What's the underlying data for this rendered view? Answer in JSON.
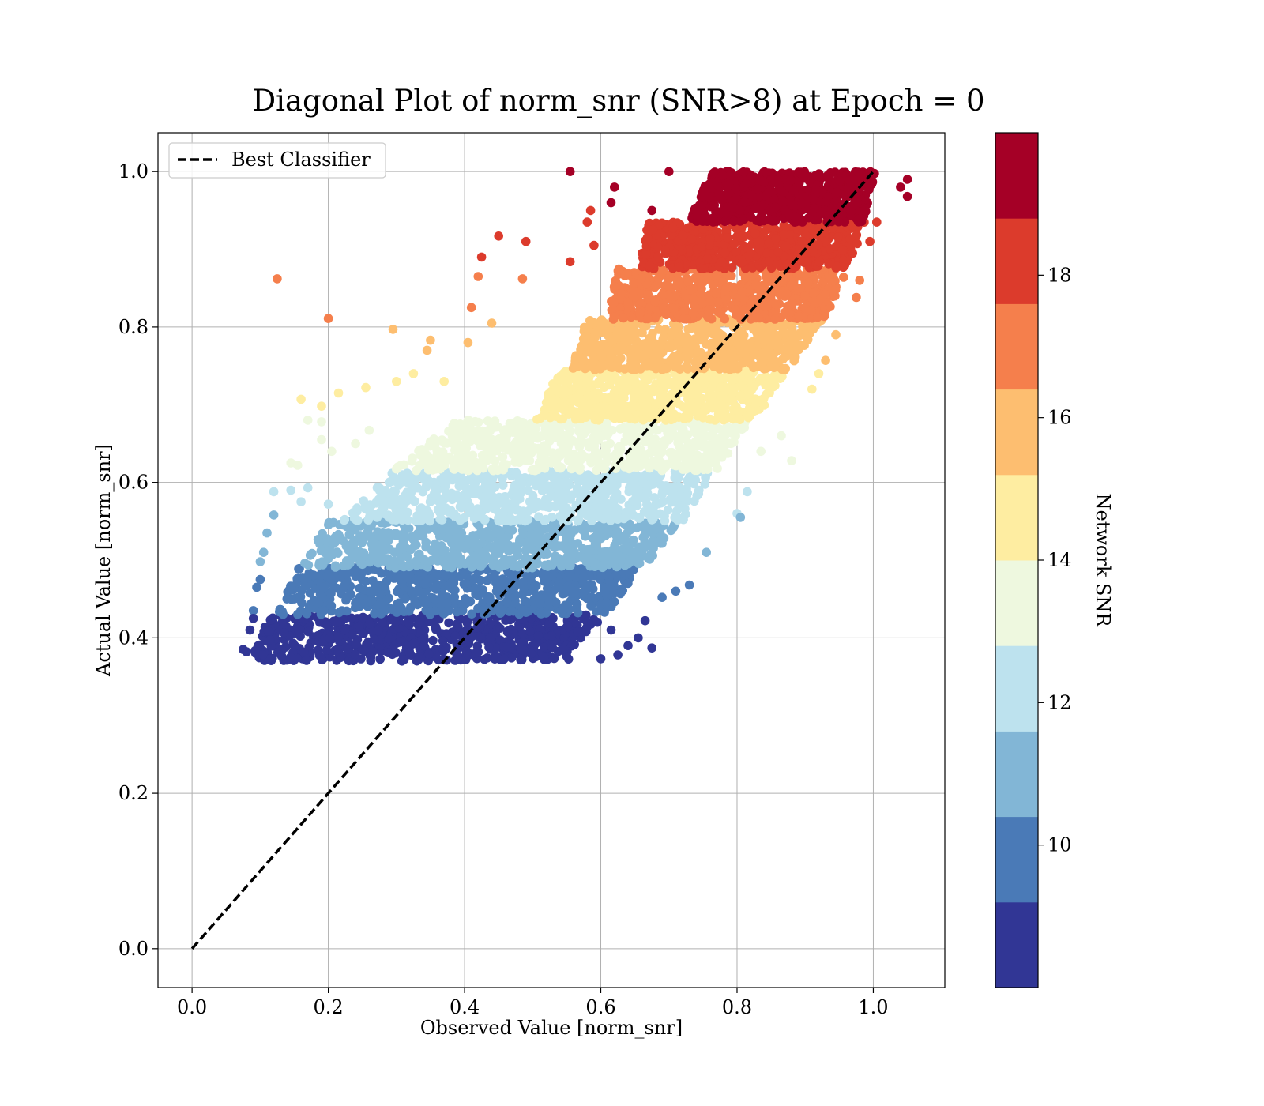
{
  "chart_data": {
    "type": "scatter",
    "title": "Diagonal Plot of norm_snr (SNR>8) at Epoch = 0",
    "xlabel": "Observed Value [norm_snr]",
    "ylabel": "Actual Value [norm_snr]",
    "xlim": [
      -0.05,
      1.105
    ],
    "ylim": [
      -0.05,
      1.05
    ],
    "x_ticks": [
      0.0,
      0.2,
      0.4,
      0.6,
      0.8,
      1.0
    ],
    "x_tick_labels": [
      "0.0",
      "0.2",
      "0.4",
      "0.6",
      "0.8",
      "1.0"
    ],
    "y_ticks": [
      0.0,
      0.2,
      0.4,
      0.6,
      0.8,
      1.0
    ],
    "y_tick_labels": [
      "0.0",
      "0.2",
      "0.4",
      "0.6",
      "0.8",
      "1.0"
    ],
    "grid": true,
    "legend": {
      "position": "top-left",
      "entries": [
        "Best Classifier"
      ]
    },
    "reference_line": {
      "name": "Best Classifier",
      "style": "dashed",
      "color": "#000000",
      "x": [
        0.0,
        1.0
      ],
      "y": [
        0.0,
        1.0
      ]
    },
    "colorbar": {
      "label": "Network SNR",
      "range": [
        8,
        20
      ],
      "ticks": [
        10,
        12,
        14,
        16,
        18
      ],
      "tick_labels": [
        "10",
        "12",
        "14",
        "16",
        "18"
      ],
      "colors": [
        "#313695",
        "#4a7ab7",
        "#82b6d6",
        "#bde2ee",
        "#eef8df",
        "#feeda1",
        "#fdbe70",
        "#f57f4c",
        "#dc3b2c",
        "#a50026"
      ]
    },
    "bands": [
      {
        "snr": [
          8.0,
          9.2
        ],
        "color": "#313695",
        "y": [
          0.37,
          0.43
        ],
        "x_min": [
          0.085,
          0.115
        ],
        "x_max": [
          0.555,
          0.595
        ]
      },
      {
        "snr": [
          9.2,
          10.4
        ],
        "color": "#4a7ab7",
        "y": [
          0.43,
          0.49
        ],
        "x_min": [
          0.125,
          0.155
        ],
        "x_max": [
          0.61,
          0.655
        ]
      },
      {
        "snr": [
          10.4,
          11.6
        ],
        "color": "#82b6d6",
        "y": [
          0.49,
          0.55
        ],
        "x_min": [
          0.16,
          0.2
        ],
        "x_max": [
          0.665,
          0.715
        ]
      },
      {
        "snr": [
          11.6,
          12.8
        ],
        "color": "#bde2ee",
        "y": [
          0.55,
          0.615
        ],
        "x_min": [
          0.22,
          0.295
        ],
        "x_max": [
          0.72,
          0.765
        ]
      },
      {
        "snr": [
          12.8,
          14.0
        ],
        "color": "#eef8df",
        "y": [
          0.615,
          0.68
        ],
        "x_min": [
          0.295,
          0.385
        ],
        "x_max": [
          0.77,
          0.82
        ]
      },
      {
        "snr": [
          14.0,
          15.2
        ],
        "color": "#feeda1",
        "y": [
          0.68,
          0.745
        ],
        "x_min": [
          0.5,
          0.54
        ],
        "x_max": [
          0.825,
          0.875
        ]
      },
      {
        "snr": [
          15.2,
          16.4
        ],
        "color": "#fdbe70",
        "y": [
          0.745,
          0.81
        ],
        "x_min": [
          0.555,
          0.58
        ],
        "x_max": [
          0.875,
          0.925
        ]
      },
      {
        "snr": [
          16.4,
          17.6
        ],
        "color": "#f57f4c",
        "y": [
          0.81,
          0.875
        ],
        "x_min": [
          0.61,
          0.625
        ],
        "x_max": [
          0.93,
          0.965
        ]
      },
      {
        "snr": [
          17.6,
          18.8
        ],
        "color": "#dc3b2c",
        "y": [
          0.875,
          0.935
        ],
        "x_min": [
          0.655,
          0.67
        ],
        "x_max": [
          0.965,
          0.99
        ]
      },
      {
        "snr": [
          18.8,
          20.0
        ],
        "color": "#a50026",
        "y": [
          0.935,
          1.0
        ],
        "x_min": [
          0.73,
          0.76
        ],
        "x_max": [
          0.985,
          1.005
        ]
      }
    ],
    "outliers": [
      {
        "x": 0.555,
        "y": 1.0,
        "color": "#a50026"
      },
      {
        "x": 0.62,
        "y": 0.98,
        "color": "#a50026"
      },
      {
        "x": 0.615,
        "y": 0.96,
        "color": "#a50026"
      },
      {
        "x": 0.7,
        "y": 1.0,
        "color": "#a50026"
      },
      {
        "x": 1.04,
        "y": 0.98,
        "color": "#a50026"
      },
      {
        "x": 1.05,
        "y": 0.99,
        "color": "#a50026"
      },
      {
        "x": 1.05,
        "y": 0.968,
        "color": "#a50026"
      },
      {
        "x": 0.675,
        "y": 0.95,
        "color": "#a50026"
      },
      {
        "x": 0.585,
        "y": 0.95,
        "color": "#dc3b2c"
      },
      {
        "x": 0.58,
        "y": 0.935,
        "color": "#dc3b2c"
      },
      {
        "x": 0.45,
        "y": 0.917,
        "color": "#dc3b2c"
      },
      {
        "x": 0.49,
        "y": 0.91,
        "color": "#dc3b2c"
      },
      {
        "x": 0.425,
        "y": 0.89,
        "color": "#dc3b2c"
      },
      {
        "x": 0.555,
        "y": 0.884,
        "color": "#dc3b2c"
      },
      {
        "x": 0.59,
        "y": 0.905,
        "color": "#dc3b2c"
      },
      {
        "x": 1.005,
        "y": 0.935,
        "color": "#dc3b2c"
      },
      {
        "x": 0.995,
        "y": 0.91,
        "color": "#dc3b2c"
      },
      {
        "x": 0.125,
        "y": 0.862,
        "color": "#f57f4c"
      },
      {
        "x": 0.2,
        "y": 0.811,
        "color": "#f57f4c"
      },
      {
        "x": 0.42,
        "y": 0.865,
        "color": "#f57f4c"
      },
      {
        "x": 0.41,
        "y": 0.825,
        "color": "#f57f4c"
      },
      {
        "x": 0.485,
        "y": 0.862,
        "color": "#f57f4c"
      },
      {
        "x": 0.98,
        "y": 0.86,
        "color": "#f57f4c"
      },
      {
        "x": 0.975,
        "y": 0.838,
        "color": "#f57f4c"
      },
      {
        "x": 0.295,
        "y": 0.797,
        "color": "#fdbe70"
      },
      {
        "x": 0.35,
        "y": 0.783,
        "color": "#fdbe70"
      },
      {
        "x": 0.345,
        "y": 0.77,
        "color": "#fdbe70"
      },
      {
        "x": 0.405,
        "y": 0.78,
        "color": "#fdbe70"
      },
      {
        "x": 0.44,
        "y": 0.805,
        "color": "#fdbe70"
      },
      {
        "x": 0.945,
        "y": 0.79,
        "color": "#fdbe70"
      },
      {
        "x": 0.93,
        "y": 0.757,
        "color": "#fdbe70"
      },
      {
        "x": 0.16,
        "y": 0.707,
        "color": "#feeda1"
      },
      {
        "x": 0.19,
        "y": 0.698,
        "color": "#feeda1"
      },
      {
        "x": 0.215,
        "y": 0.715,
        "color": "#feeda1"
      },
      {
        "x": 0.255,
        "y": 0.722,
        "color": "#feeda1"
      },
      {
        "x": 0.3,
        "y": 0.73,
        "color": "#feeda1"
      },
      {
        "x": 0.325,
        "y": 0.74,
        "color": "#feeda1"
      },
      {
        "x": 0.37,
        "y": 0.73,
        "color": "#feeda1"
      },
      {
        "x": 0.92,
        "y": 0.74,
        "color": "#feeda1"
      },
      {
        "x": 0.91,
        "y": 0.72,
        "color": "#feeda1"
      },
      {
        "x": 0.17,
        "y": 0.68,
        "color": "#eef8df"
      },
      {
        "x": 0.19,
        "y": 0.678,
        "color": "#eef8df"
      },
      {
        "x": 0.19,
        "y": 0.655,
        "color": "#eef8df"
      },
      {
        "x": 0.205,
        "y": 0.64,
        "color": "#eef8df"
      },
      {
        "x": 0.145,
        "y": 0.625,
        "color": "#eef8df"
      },
      {
        "x": 0.155,
        "y": 0.622,
        "color": "#eef8df"
      },
      {
        "x": 0.24,
        "y": 0.65,
        "color": "#eef8df"
      },
      {
        "x": 0.26,
        "y": 0.667,
        "color": "#eef8df"
      },
      {
        "x": 0.835,
        "y": 0.64,
        "color": "#eef8df"
      },
      {
        "x": 0.865,
        "y": 0.66,
        "color": "#eef8df"
      },
      {
        "x": 0.88,
        "y": 0.628,
        "color": "#eef8df"
      },
      {
        "x": 0.12,
        "y": 0.588,
        "color": "#bde2ee"
      },
      {
        "x": 0.145,
        "y": 0.59,
        "color": "#bde2ee"
      },
      {
        "x": 0.16,
        "y": 0.575,
        "color": "#bde2ee"
      },
      {
        "x": 0.17,
        "y": 0.593,
        "color": "#bde2ee"
      },
      {
        "x": 0.2,
        "y": 0.572,
        "color": "#bde2ee"
      },
      {
        "x": 0.815,
        "y": 0.588,
        "color": "#bde2ee"
      },
      {
        "x": 0.8,
        "y": 0.56,
        "color": "#bde2ee"
      },
      {
        "x": 0.805,
        "y": 0.555,
        "color": "#82b6d6"
      },
      {
        "x": 0.12,
        "y": 0.558,
        "color": "#82b6d6"
      },
      {
        "x": 0.11,
        "y": 0.535,
        "color": "#82b6d6"
      },
      {
        "x": 0.105,
        "y": 0.51,
        "color": "#82b6d6"
      },
      {
        "x": 0.1,
        "y": 0.498,
        "color": "#82b6d6"
      },
      {
        "x": 0.755,
        "y": 0.51,
        "color": "#82b6d6"
      },
      {
        "x": 0.73,
        "y": 0.468,
        "color": "#4a7ab7"
      },
      {
        "x": 0.71,
        "y": 0.46,
        "color": "#4a7ab7"
      },
      {
        "x": 0.69,
        "y": 0.452,
        "color": "#4a7ab7"
      },
      {
        "x": 0.1,
        "y": 0.475,
        "color": "#4a7ab7"
      },
      {
        "x": 0.095,
        "y": 0.465,
        "color": "#4a7ab7"
      },
      {
        "x": 0.09,
        "y": 0.435,
        "color": "#4a7ab7"
      },
      {
        "x": 0.075,
        "y": 0.385,
        "color": "#313695"
      },
      {
        "x": 0.08,
        "y": 0.382,
        "color": "#313695"
      },
      {
        "x": 0.085,
        "y": 0.41,
        "color": "#313695"
      },
      {
        "x": 0.09,
        "y": 0.425,
        "color": "#313695"
      },
      {
        "x": 0.675,
        "y": 0.387,
        "color": "#313695"
      },
      {
        "x": 0.665,
        "y": 0.422,
        "color": "#313695"
      },
      {
        "x": 0.655,
        "y": 0.4,
        "color": "#313695"
      },
      {
        "x": 0.64,
        "y": 0.39,
        "color": "#313695"
      },
      {
        "x": 0.625,
        "y": 0.378,
        "color": "#313695"
      },
      {
        "x": 0.6,
        "y": 0.373,
        "color": "#313695"
      },
      {
        "x": 0.615,
        "y": 0.41,
        "color": "#313695"
      },
      {
        "x": 0.595,
        "y": 0.42,
        "color": "#313695"
      }
    ]
  }
}
